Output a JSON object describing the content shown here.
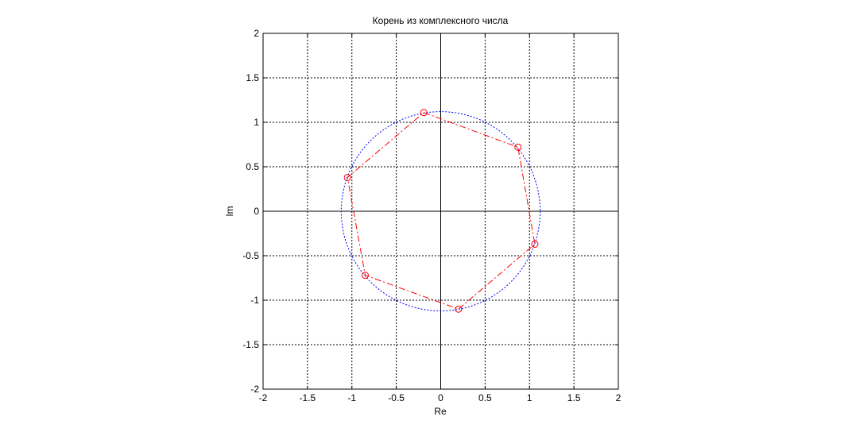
{
  "chart_data": {
    "type": "scatter",
    "title": "Корень из комплексного числа",
    "xlabel": "Re",
    "ylabel": "Im",
    "xlim": [
      -2,
      2
    ],
    "ylim": [
      -2,
      2
    ],
    "grid": true,
    "grid_style": "dotted",
    "x_ticks": [
      -2,
      -1.5,
      -1,
      -0.5,
      0,
      0.5,
      1,
      1.5,
      2
    ],
    "y_ticks": [
      -2,
      -1.5,
      -1,
      -0.5,
      0,
      0.5,
      1,
      1.5,
      2
    ],
    "x_tick_labels": [
      "-2",
      "-1.5",
      "-1",
      "-0.5",
      "0",
      "0.5",
      "1",
      "1.5",
      "2"
    ],
    "y_tick_labels": [
      "-2",
      "-1.5",
      "-1",
      "-0.5",
      "0",
      "0.5",
      "1",
      "1.5",
      "2"
    ],
    "axes_lines": true,
    "circle": {
      "center": [
        0,
        0
      ],
      "radius": 1.12,
      "color": "#0000ff",
      "style": "dotted"
    },
    "roots": {
      "points": [
        {
          "x": -0.19,
          "y": 1.11
        },
        {
          "x": 0.87,
          "y": 0.72
        },
        {
          "x": 1.06,
          "y": -0.37
        },
        {
          "x": 0.2,
          "y": -1.1
        },
        {
          "x": -0.85,
          "y": -0.72
        },
        {
          "x": -1.05,
          "y": 0.38
        }
      ],
      "marker": "circle",
      "color": "#ff0000",
      "line_style": "dash-dot"
    }
  }
}
